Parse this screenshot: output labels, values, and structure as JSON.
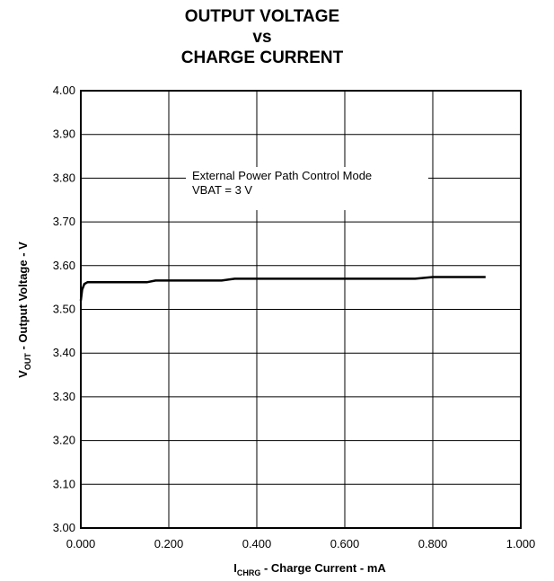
{
  "chart_data": {
    "type": "line",
    "title_lines": [
      "OUTPUT VOLTAGE",
      "vs",
      "CHARGE CURRENT"
    ],
    "xlabel": {
      "main": "I",
      "sub": "CHRG",
      "rest": " - Charge Current - mA"
    },
    "ylabel": {
      "main": "V",
      "sub": "OUT",
      "rest": " - Output Voltage - V"
    },
    "xlim": [
      0,
      1
    ],
    "ylim": [
      3.0,
      4.0
    ],
    "x_ticks": [
      "0.000",
      "0.200",
      "0.400",
      "0.600",
      "0.800",
      "1.000"
    ],
    "y_ticks": [
      "3.00",
      "3.10",
      "3.20",
      "3.30",
      "3.40",
      "3.50",
      "3.60",
      "3.70",
      "3.80",
      "3.90",
      "4.00"
    ],
    "grid": true,
    "annotation": [
      "External Power Path Control Mode",
      "VBAT = 3 V"
    ],
    "series": [
      {
        "color": "#000000",
        "x": [
          0.0,
          0.003,
          0.008,
          0.015,
          0.03,
          0.1,
          0.15,
          0.17,
          0.3,
          0.32,
          0.35,
          0.5,
          0.7,
          0.76,
          0.8,
          0.85,
          0.92
        ],
        "y": [
          3.52,
          3.545,
          3.558,
          3.562,
          3.562,
          3.562,
          3.562,
          3.566,
          3.566,
          3.566,
          3.57,
          3.57,
          3.57,
          3.57,
          3.574,
          3.574,
          3.574
        ]
      }
    ]
  }
}
